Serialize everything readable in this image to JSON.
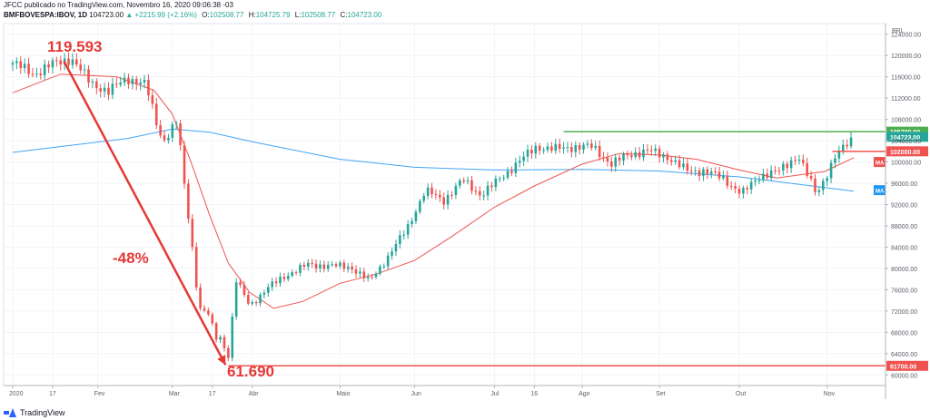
{
  "header": {
    "line1": "JFCC publicado no TradingView.com, Novembro 16, 2020 09:06:38 -03",
    "symbol": "BMFBOVESPA:IBOV, 1D",
    "last": "104723.00",
    "change": "▲ +2215.99 (+2.16%)",
    "open_label": "O:",
    "open": "102508.77",
    "high_label": "H:",
    "high": "104725.79",
    "low_label": "L:",
    "low": "102508.77",
    "close_label": "C:",
    "close": "104723.00"
  },
  "footer": {
    "brand": "TradingView"
  },
  "chart_data": {
    "type": "candlestick",
    "currency": "BRL",
    "ylim": [
      58000,
      126000
    ],
    "ytick_values": [
      60000,
      64000,
      68000,
      72000,
      76000,
      80000,
      84000,
      88000,
      92000,
      96000,
      100000,
      104000,
      108000,
      112000,
      116000,
      120000,
      124000
    ],
    "ytick_labels": [
      "60000.00",
      "64000.00",
      "68000.00",
      "72000.00",
      "76000.00",
      "80000.00",
      "84000.00",
      "88000.00",
      "92000.00",
      "96000.00",
      "100000.00",
      "104000.00",
      "108000.00",
      "112000.00",
      "116000.00",
      "120000.00",
      "124000.00"
    ],
    "x_date_range": [
      "2020-01-02",
      "2020-11-13"
    ],
    "xtick_dates": [
      "2020-01-02",
      "2020-01-17",
      "2020-02-03",
      "2020-03-02",
      "2020-03-17",
      "2020-04-01",
      "2020-05-04",
      "2020-06-01",
      "2020-07-01",
      "2020-07-16",
      "2020-08-03",
      "2020-09-01",
      "2020-10-01",
      "2020-11-03"
    ],
    "xtick_labels": [
      "2020",
      "17",
      "Fev",
      "Mar",
      "17",
      "Abr",
      "Maio",
      "Jun",
      "Jul",
      "16",
      "Ago",
      "Set",
      "Out",
      "Nov"
    ],
    "closes": [
      [
        "2020-01-02",
        118600
      ],
      [
        "2020-01-10",
        116500
      ],
      [
        "2020-01-17",
        118400
      ],
      [
        "2020-01-24",
        119500
      ],
      [
        "2020-01-31",
        115000
      ],
      [
        "2020-02-07",
        113200
      ],
      [
        "2020-02-14",
        115800
      ],
      [
        "2020-02-21",
        114500
      ],
      [
        "2020-02-26",
        105700
      ],
      [
        "2020-02-28",
        104200
      ],
      [
        "2020-03-04",
        107700
      ],
      [
        "2020-03-06",
        97500
      ],
      [
        "2020-03-09",
        86100
      ],
      [
        "2020-03-12",
        72600
      ],
      [
        "2020-03-16",
        71200
      ],
      [
        "2020-03-18",
        66900
      ],
      [
        "2020-03-20",
        67000
      ],
      [
        "2020-03-23",
        63600
      ],
      [
        "2020-03-26",
        77700
      ],
      [
        "2020-03-31",
        73000
      ],
      [
        "2020-04-07",
        76400
      ],
      [
        "2020-04-14",
        78800
      ],
      [
        "2020-04-22",
        80700
      ],
      [
        "2020-04-30",
        80500
      ],
      [
        "2020-05-08",
        80300
      ],
      [
        "2020-05-15",
        77600
      ],
      [
        "2020-05-22",
        82200
      ],
      [
        "2020-05-29",
        87400
      ],
      [
        "2020-06-05",
        94600
      ],
      [
        "2020-06-12",
        92800
      ],
      [
        "2020-06-19",
        96600
      ],
      [
        "2020-06-26",
        93800
      ],
      [
        "2020-07-03",
        96800
      ],
      [
        "2020-07-10",
        100000
      ],
      [
        "2020-07-17",
        102900
      ],
      [
        "2020-07-24",
        102400
      ],
      [
        "2020-07-31",
        102900
      ],
      [
        "2020-08-07",
        102800
      ],
      [
        "2020-08-14",
        99600
      ],
      [
        "2020-08-21",
        101500
      ],
      [
        "2020-08-28",
        102100
      ],
      [
        "2020-09-04",
        101000
      ],
      [
        "2020-09-11",
        98400
      ],
      [
        "2020-09-18",
        98300
      ],
      [
        "2020-09-25",
        96900
      ],
      [
        "2020-10-02",
        94000
      ],
      [
        "2020-10-09",
        97500
      ],
      [
        "2020-10-16",
        98300
      ],
      [
        "2020-10-23",
        101300
      ],
      [
        "2020-10-30",
        93900
      ],
      [
        "2020-11-06",
        100900
      ],
      [
        "2020-11-13",
        104723
      ]
    ],
    "ma_short": [
      [
        "2020-01-02",
        113000
      ],
      [
        "2020-01-20",
        116500
      ],
      [
        "2020-02-10",
        116000
      ],
      [
        "2020-02-24",
        113500
      ],
      [
        "2020-03-02",
        109000
      ],
      [
        "2020-03-09",
        100000
      ],
      [
        "2020-03-16",
        90000
      ],
      [
        "2020-03-23",
        81000
      ],
      [
        "2020-03-31",
        75500
      ],
      [
        "2020-04-09",
        72500
      ],
      [
        "2020-04-20",
        73800
      ],
      [
        "2020-05-04",
        77200
      ],
      [
        "2020-05-18",
        79000
      ],
      [
        "2020-06-01",
        81500
      ],
      [
        "2020-06-15",
        86000
      ],
      [
        "2020-07-01",
        91500
      ],
      [
        "2020-07-16",
        95500
      ],
      [
        "2020-08-03",
        99600
      ],
      [
        "2020-08-17",
        101600
      ],
      [
        "2020-09-01",
        101300
      ],
      [
        "2020-09-15",
        100500
      ],
      [
        "2020-10-01",
        98500
      ],
      [
        "2020-10-15",
        97000
      ],
      [
        "2020-11-02",
        98200
      ],
      [
        "2020-11-13",
        100800
      ]
    ],
    "ma_long": [
      [
        "2020-01-02",
        101800
      ],
      [
        "2020-02-14",
        104400
      ],
      [
        "2020-03-02",
        106200
      ],
      [
        "2020-03-16",
        105600
      ],
      [
        "2020-04-01",
        103800
      ],
      [
        "2020-05-04",
        100500
      ],
      [
        "2020-06-01",
        99000
      ],
      [
        "2020-07-01",
        98500
      ],
      [
        "2020-08-03",
        98600
      ],
      [
        "2020-09-01",
        98300
      ],
      [
        "2020-10-01",
        97200
      ],
      [
        "2020-11-13",
        94500
      ]
    ],
    "levels": [
      {
        "name": "resistance",
        "value": 105700,
        "label": "105700.00",
        "color": "#4caf50",
        "start": "2020-07-27"
      },
      {
        "name": "last",
        "value": 104723,
        "label": "104723.00",
        "color": "#26a69a"
      },
      {
        "name": "stop",
        "value": 102000,
        "label": "102000.00",
        "color": "#ef5350",
        "start": "2020-11-05"
      },
      {
        "name": "bottom",
        "value": 61700,
        "label": "61700.00",
        "color": "#ef5350",
        "start": "2020-03-23"
      }
    ],
    "ma_labels": [
      {
        "text": "MA",
        "value": 100000,
        "color": "#ef5350"
      },
      {
        "text": "MA",
        "value": 94700,
        "color": "#2196f3"
      }
    ],
    "annotations": {
      "peak": {
        "text": "119.593",
        "date": "2020-01-24",
        "value": 119593
      },
      "trough": {
        "text": "61.690",
        "date": "2020-03-23",
        "value": 61690
      },
      "drop": {
        "text": "-48%"
      }
    },
    "colors": {
      "up": "#26a69a",
      "down": "#ef5350",
      "ma_short": "#ef5350",
      "ma_long": "#42a5f5",
      "grid": "#f0f3fa",
      "annotation": "#e53935"
    }
  }
}
